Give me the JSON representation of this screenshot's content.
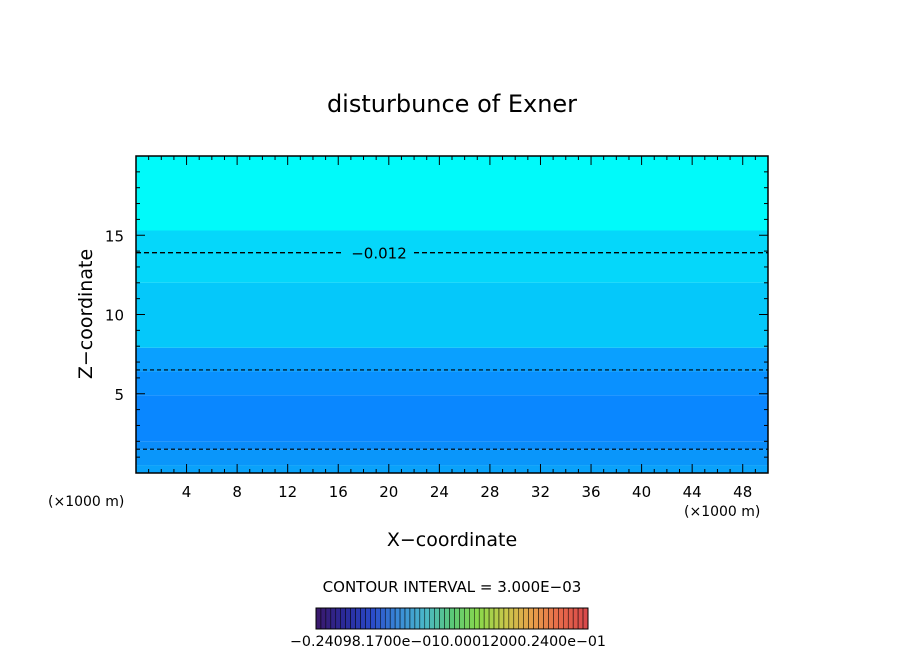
{
  "chart_data": {
    "type": "contour",
    "title": "disturbunce of Exner",
    "xlabel": "X−coordinate",
    "ylabel": "Z−coordinate",
    "x_unit_left": "(×1000 m)",
    "x_unit_right": "(×1000 m)",
    "xlim": [
      0,
      50
    ],
    "ylim": [
      0,
      20
    ],
    "x_ticks": [
      4,
      8,
      12,
      16,
      20,
      24,
      28,
      32,
      36,
      40,
      44,
      48
    ],
    "y_ticks": [
      5,
      10,
      15
    ],
    "bands": [
      {
        "z0": 0.0,
        "z1": 0.5,
        "color": "#0aa2fa"
      },
      {
        "z0": 0.5,
        "z1": 1.5,
        "color": "#0a96fa"
      },
      {
        "z0": 1.5,
        "z1": 2.0,
        "color": "#0a8cfa"
      },
      {
        "z0": 2.0,
        "z1": 4.9,
        "color": "#0a87ff"
      },
      {
        "z0": 4.9,
        "z1": 6.4,
        "color": "#0a91ff"
      },
      {
        "z0": 6.4,
        "z1": 7.9,
        "color": "#0aa0ff"
      },
      {
        "z0": 7.9,
        "z1": 12.0,
        "color": "#05c8fa"
      },
      {
        "z0": 12.0,
        "z1": 15.3,
        "color": "#05d7fa"
      },
      {
        "z0": 15.3,
        "z1": 20.0,
        "color": "#00fafa"
      }
    ],
    "contours": [
      {
        "z": 13.9,
        "label": "−0.012"
      },
      {
        "z": 6.5,
        "label": ""
      },
      {
        "z": 1.5,
        "label": ""
      }
    ],
    "contour_interval_text": "CONTOUR INTERVAL = 3.000E−03",
    "colorbar": {
      "min": -0.24,
      "max": 0.24,
      "labels_text": "−0.24098.1700e−010.00012000.2400e−01",
      "colors": [
        "#3a1a6e",
        "#2a2a9a",
        "#2a4ac8",
        "#3a8ad8",
        "#4ab8c8",
        "#5ac878",
        "#8ad84a",
        "#c8c84a",
        "#e8a04a",
        "#e86a4a",
        "#d84a4a"
      ]
    }
  }
}
